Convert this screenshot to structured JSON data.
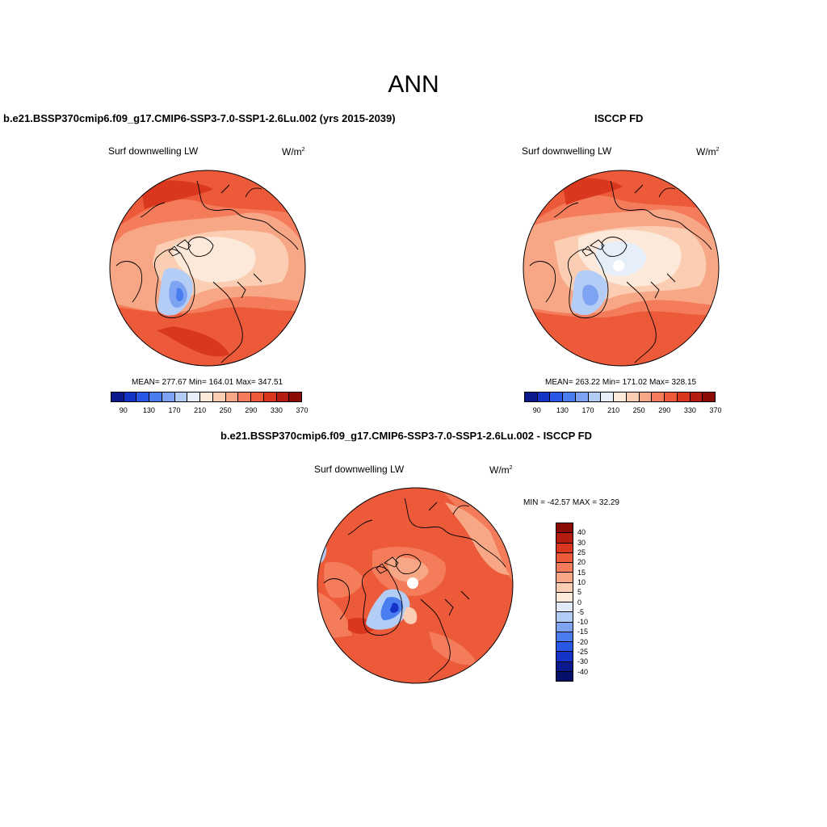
{
  "title": "ANN",
  "panels": {
    "model": {
      "title": "b.e21.BSSP370cmip6.f09_g17.CMIP6-SSP3-7.0-SSP1-2.6Lu.002 (yrs 2015-2039)",
      "variable": "Surf downwelling LW",
      "units_base": "W/m",
      "units_exp": "2",
      "stats": "MEAN= 277.67  Min= 164.01  Max= 347.51",
      "colorbar_ticks": [
        "90",
        "130",
        "170",
        "210",
        "250",
        "290",
        "330",
        "370"
      ]
    },
    "obs": {
      "title": "ISCCP FD",
      "variable": "Surf downwelling LW",
      "units_base": "W/m",
      "units_exp": "2",
      "stats": "MEAN= 263.22  Min= 171.02  Max= 328.15",
      "colorbar_ticks": [
        "90",
        "130",
        "170",
        "210",
        "250",
        "290",
        "330",
        "370"
      ]
    },
    "diff": {
      "title": "b.e21.BSSP370cmip6.f09_g17.CMIP6-SSP3-7.0-SSP1-2.6Lu.002 - ISCCP FD",
      "variable": "Surf downwelling LW",
      "units_base": "W/m",
      "units_exp": "2",
      "stats": "MIN = -42.57 MAX =  32.29",
      "colorbar_ticks": [
        "40",
        "30",
        "25",
        "20",
        "15",
        "10",
        "5",
        "0",
        "-5",
        "-10",
        "-15",
        "-20",
        "-25",
        "-30",
        "-40"
      ]
    }
  },
  "colors": {
    "abs_scale": [
      "#0a1a8c",
      "#1633c7",
      "#2a58e6",
      "#4a7ef0",
      "#7ea3f2",
      "#b4cdf7",
      "#e6eefa",
      "#fde9d9",
      "#fbcdb2",
      "#f8a786",
      "#f47c5a",
      "#ec5a3a",
      "#d9381f",
      "#b51d10",
      "#8a0c05"
    ],
    "diff_scale": [
      "#8a0c05",
      "#b51d10",
      "#d9381f",
      "#ec5a3a",
      "#f47c5a",
      "#f8a786",
      "#fbcdb2",
      "#fde9d9",
      "#dfe9f8",
      "#b4cdf7",
      "#7ea3f2",
      "#4a7ef0",
      "#2a58e6",
      "#1633c7",
      "#0a1a8c",
      "#06106a"
    ]
  }
}
